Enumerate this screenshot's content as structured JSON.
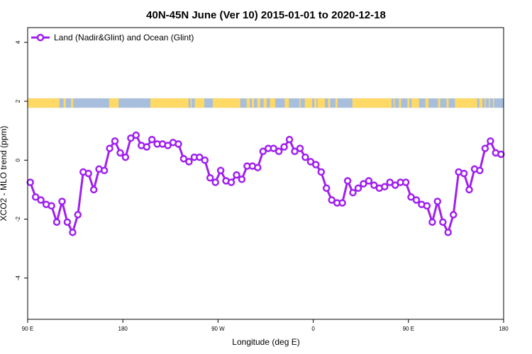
{
  "chart_data": {
    "type": "line",
    "title": "40N-45N June (Ver 10)   2015-01-01 to 2020-12-18",
    "xlabel": "Longitude (deg E)",
    "ylabel": "XCO2 - MLO trend (ppm)",
    "xlim": [
      90,
      540
    ],
    "ylim": [
      -5.4,
      4.5
    ],
    "grid": false,
    "legend_position": "top-left",
    "x_ticks": [
      {
        "value": 90,
        "label": "90 E"
      },
      {
        "value": 180,
        "label": "180"
      },
      {
        "value": 270,
        "label": "90 W"
      },
      {
        "value": 360,
        "label": "0"
      },
      {
        "value": 450,
        "label": "90 E"
      },
      {
        "value": 540,
        "label": "180"
      }
    ],
    "y_ticks": [
      {
        "value": -4,
        "label": "-4"
      },
      {
        "value": -2,
        "label": "-2"
      },
      {
        "value": 0,
        "label": "0"
      },
      {
        "value": 2,
        "label": "2"
      },
      {
        "value": 4,
        "label": "4"
      }
    ],
    "series": [
      {
        "name": "Land (Nadir&Glint) and Ocean (Glint)",
        "color": "#a020f0",
        "x": [
          92.5,
          97.5,
          102.5,
          107.5,
          112.5,
          117.5,
          122.5,
          127.5,
          132.5,
          137.5,
          142.5,
          147.5,
          152.5,
          157.5,
          162.5,
          167.5,
          172.5,
          177.5,
          182.5,
          187.5,
          192.5,
          197.5,
          202.5,
          207.5,
          212.5,
          217.5,
          222.5,
          227.5,
          232.5,
          237.5,
          242.5,
          247.5,
          252.5,
          257.5,
          262.5,
          267.5,
          272.5,
          277.5,
          282.5,
          287.5,
          292.5,
          297.5,
          302.5,
          307.5,
          312.5,
          317.5,
          322.5,
          327.5,
          332.5,
          337.5,
          342.5,
          347.5,
          352.5,
          357.5,
          362.5,
          367.5,
          372.5,
          377.5,
          382.5,
          387.5,
          392.5,
          397.5,
          402.5,
          407.5,
          412.5,
          417.5,
          422.5,
          427.5,
          432.5,
          437.5,
          442.5,
          447.5,
          452.5,
          457.5,
          462.5,
          467.5,
          472.5,
          477.5,
          482.5,
          487.5,
          492.5,
          497.5,
          502.5,
          507.5,
          512.5,
          517.5,
          522.5,
          527.5,
          532.5,
          537.5
        ],
        "y": [
          -0.75,
          -1.25,
          -1.35,
          -1.5,
          -1.55,
          -2.1,
          -1.4,
          -2.1,
          -2.45,
          -1.85,
          -0.4,
          -0.45,
          -1.0,
          -0.3,
          -0.35,
          0.4,
          0.65,
          0.25,
          0.1,
          0.75,
          0.85,
          0.5,
          0.45,
          0.7,
          0.55,
          0.55,
          0.5,
          0.6,
          0.55,
          0.05,
          -0.05,
          0.1,
          0.1,
          0.0,
          -0.6,
          -0.75,
          -0.35,
          -0.7,
          -0.75,
          -0.5,
          -0.65,
          -0.2,
          -0.2,
          -0.25,
          0.3,
          0.4,
          0.4,
          0.3,
          0.45,
          0.7,
          0.3,
          0.4,
          0.1,
          -0.05,
          -0.15,
          -0.4,
          -0.95,
          -1.35,
          -1.45,
          -1.45,
          -0.7,
          -1.1,
          -0.95,
          -0.8,
          -0.7,
          -0.85,
          -0.95,
          -0.9,
          -0.75,
          -0.85,
          -0.75,
          -0.75,
          -1.25,
          -1.35,
          -1.5,
          -1.55,
          -2.1,
          -1.4,
          -2.1,
          -2.45,
          -1.85,
          -0.4,
          -0.45,
          -1.0,
          -0.3,
          -0.35,
          0.4,
          0.65,
          0.25,
          0.2
        ]
      }
    ],
    "surface_band": {
      "y_range": [
        1.78,
        2.1
      ],
      "land_color": "#ffd966",
      "ocean_color": "#a7bedc",
      "land_segments": [
        [
          90,
          120
        ],
        [
          124,
          126
        ],
        [
          131,
          133
        ],
        [
          167,
          176
        ],
        [
          206,
          242
        ],
        [
          244,
          245
        ],
        [
          248,
          257
        ],
        [
          265,
          291
        ],
        [
          297,
          300
        ],
        [
          302,
          304
        ],
        [
          307,
          310
        ],
        [
          313,
          316
        ],
        [
          319,
          324
        ],
        [
          333,
          337
        ],
        [
          347,
          348
        ],
        [
          352,
          359
        ],
        [
          361,
          363
        ],
        [
          364,
          371
        ],
        [
          374,
          376
        ],
        [
          381,
          383
        ],
        [
          397,
          434
        ],
        [
          436,
          437
        ],
        [
          441,
          443
        ],
        [
          449,
          451
        ],
        [
          453,
          460
        ],
        [
          466,
          469
        ],
        [
          478,
          480
        ],
        [
          486,
          488
        ],
        [
          494,
          515
        ],
        [
          517,
          520
        ],
        [
          522,
          523
        ],
        [
          526,
          527
        ],
        [
          530,
          531
        ]
      ]
    }
  }
}
